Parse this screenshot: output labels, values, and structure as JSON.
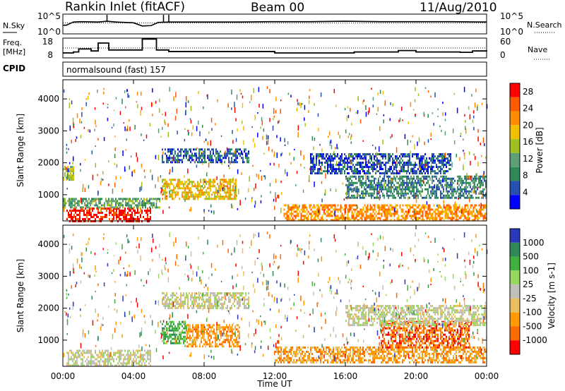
{
  "header": {
    "title": "Rankin Inlet (fitACF)",
    "beam": "Beam 00",
    "date": "11/Aug/2010"
  },
  "strips": {
    "nsky_label": "N.Sky",
    "nsearch_label": "N.Search",
    "nsky_ticks": [
      "10^5",
      "10^0"
    ],
    "nsearch_ticks": [
      "10^5",
      "10^0"
    ],
    "freq_label": "Freq.",
    "freq_unit": "[MHz]",
    "freq_ticks": [
      "18",
      "8"
    ],
    "nave_label": "Nave",
    "nave_ticks": [
      "60",
      "0"
    ],
    "cpid_label": "CPID",
    "cpid_text": "normalsound (fast) 157"
  },
  "time_axis": {
    "label": "Time UT",
    "ticks": [
      "00:00",
      "04:00",
      "08:00",
      "12:00",
      "16:00",
      "20:00",
      "00:00"
    ]
  },
  "colors": {
    "power": [
      "#0000ff",
      "#2850b0",
      "#2e8b57",
      "#5f9f78",
      "#a0c020",
      "#f0c000",
      "#ff8c00",
      "#ff5a00",
      "#ff0000"
    ],
    "velocity": [
      "#2838b8",
      "#2e8b57",
      "#40b040",
      "#98d860",
      "#c0c0b8",
      "#e8c060",
      "#ff9a00",
      "#ff6a00",
      "#ff0000"
    ]
  },
  "chart_data": [
    {
      "type": "line",
      "title": "N.Sky / N.Search",
      "x_range_hours": [
        0,
        24
      ],
      "ylim": [
        0,
        5
      ],
      "yscale": "log10",
      "x": [
        0,
        0.2,
        0.6,
        1,
        2,
        2.5,
        3,
        4,
        4.5,
        5,
        5.4,
        6,
        8,
        10,
        12,
        14,
        16,
        18,
        20,
        22,
        24
      ],
      "series": [
        {
          "name": "N.Sky",
          "values": [
            2.2,
            2.2,
            3.0,
            3.1,
            3.0,
            3.2,
            3.0,
            2.8,
            2.0,
            2.1,
            2.9,
            3.0,
            3.0,
            3.0,
            3.1,
            3.1,
            3.2,
            3.1,
            3.1,
            3.1,
            3.0
          ]
        },
        {
          "name": "N.Search",
          "values": [
            2.8,
            2.8,
            2.8,
            2.8,
            2.8,
            2.8,
            2.8,
            2.8,
            2.8,
            2.8,
            2.8,
            2.8,
            2.8,
            2.8,
            2.8,
            2.8,
            2.8,
            2.8,
            2.8,
            2.8,
            2.8
          ]
        }
      ]
    },
    {
      "type": "line",
      "title": "Freq. / Nave",
      "x_range_hours": [
        0,
        24
      ],
      "ylim_freq": [
        8,
        18
      ],
      "ylim_nave": [
        0,
        60
      ],
      "series": [
        {
          "name": "Freq.",
          "x": [
            0,
            0.6,
            0.9,
            1.6,
            2.0,
            2.6,
            4.5,
            5.3,
            6.0,
            12.0,
            13.5,
            16.5,
            19.0,
            20.0,
            22.5,
            23.2,
            24
          ],
          "values": [
            10.5,
            11.0,
            12.5,
            11.5,
            15.5,
            12.0,
            17.5,
            12.0,
            11.2,
            10.5,
            10.5,
            11.0,
            11.7,
            11.0,
            10.8,
            11.5,
            11.2
          ]
        },
        {
          "name": "Nave",
          "x": [
            0,
            24
          ],
          "values": [
            30,
            30
          ]
        }
      ]
    },
    {
      "type": "heatmap",
      "title": "Power",
      "xlabel": "Time UT",
      "ylabel": "Slant Range [km]",
      "x_range_hours": [
        0,
        24
      ],
      "ylim": [
        180,
        4600
      ],
      "yticks": [
        1000,
        2000,
        3000,
        4000
      ],
      "colorbar_label": "Power [dB]",
      "colorbar_ticks": [
        4,
        8,
        12,
        16,
        20,
        24,
        28
      ],
      "colorbar_range": [
        0,
        30
      ],
      "regions": [
        {
          "t": [
            0.2,
            5.0
          ],
          "r": [
            180,
            600
          ],
          "value": 28
        },
        {
          "t": [
            0.0,
            5.5
          ],
          "r": [
            600,
            900
          ],
          "value": 10
        },
        {
          "t": [
            5.6,
            9.8
          ],
          "r": [
            900,
            1500
          ],
          "value": 18
        },
        {
          "t": [
            5.6,
            10.5
          ],
          "r": [
            2050,
            2450
          ],
          "value": 6
        },
        {
          "t": [
            0.0,
            0.6
          ],
          "r": [
            1450,
            1900
          ],
          "value": 14
        },
        {
          "t": [
            12.5,
            24.0
          ],
          "r": [
            180,
            700
          ],
          "value": 22
        },
        {
          "t": [
            16.0,
            24.0
          ],
          "r": [
            900,
            1600
          ],
          "value": 9
        },
        {
          "t": [
            14.0,
            22.0
          ],
          "r": [
            1700,
            2300
          ],
          "value": 5
        }
      ]
    },
    {
      "type": "heatmap",
      "title": "Velocity",
      "xlabel": "Time UT",
      "ylabel": "Slant Range [km]",
      "x_range_hours": [
        0,
        24
      ],
      "ylim": [
        180,
        4600
      ],
      "yticks": [
        1000,
        2000,
        3000,
        4000
      ],
      "colorbar_label": "Velocity [m s-1]",
      "colorbar_ticks": [
        "1000",
        "500",
        "100",
        "25",
        "-25",
        "-100",
        "-500",
        "-1000"
      ],
      "regions": [
        {
          "t": [
            0.2,
            5.0
          ],
          "r": [
            180,
            700
          ],
          "value": 0
        },
        {
          "t": [
            5.6,
            7.0
          ],
          "r": [
            900,
            1600
          ],
          "value": 100
        },
        {
          "t": [
            7.0,
            10.0
          ],
          "r": [
            800,
            1500
          ],
          "value": -300
        },
        {
          "t": [
            5.6,
            10.5
          ],
          "r": [
            2000,
            2500
          ],
          "value": 0
        },
        {
          "t": [
            12.0,
            24.0
          ],
          "r": [
            300,
            800
          ],
          "value": -150
        },
        {
          "t": [
            18.0,
            23.0
          ],
          "r": [
            800,
            1600
          ],
          "value": -800
        },
        {
          "t": [
            16.0,
            24.0
          ],
          "r": [
            1500,
            2100
          ],
          "value": 0
        }
      ]
    }
  ]
}
